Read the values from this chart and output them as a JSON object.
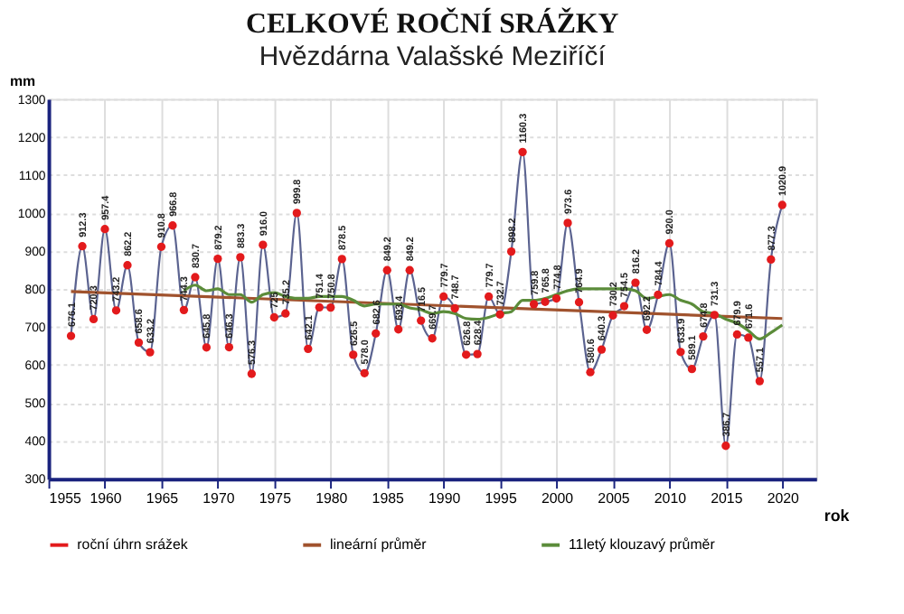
{
  "chart_data": {
    "type": "line",
    "title": "CELKOVÉ ROČNÍ SRÁŽKY",
    "subtitle": "Hvězdárna Valašské Meziříčí",
    "xlabel": "rok",
    "ylabel": "mm",
    "xlim": [
      1955,
      2023
    ],
    "xticks": [
      1955,
      1960,
      1965,
      1970,
      1975,
      1980,
      1985,
      1990,
      1995,
      2000,
      2005,
      2010,
      2015,
      2020
    ],
    "ylim": [
      300,
      1300
    ],
    "yticks": [
      300,
      400,
      500,
      600,
      700,
      800,
      900,
      1000,
      1100,
      1200,
      1300
    ],
    "line_style": "solid",
    "grid": true,
    "legend": "bottom",
    "series": [
      {
        "name": "roční úhrn srážek",
        "marker": "circle",
        "color": "#e31a1c",
        "x": [
          1957,
          1958,
          1959,
          1960,
          1961,
          1962,
          1963,
          1964,
          1965,
          1966,
          1967,
          1968,
          1969,
          1970,
          1971,
          1972,
          1973,
          1974,
          1975,
          1976,
          1977,
          1978,
          1979,
          1980,
          1981,
          1982,
          1983,
          1984,
          1985,
          1986,
          1987,
          1988,
          1989,
          1990,
          1991,
          1992,
          1993,
          1994,
          1995,
          1996,
          1997,
          1998,
          1999,
          2000,
          2001,
          2002,
          2003,
          2004,
          2005,
          2006,
          2007,
          2008,
          2009,
          2010,
          2011,
          2012,
          2013,
          2014,
          2015,
          2016,
          2017,
          2018,
          2019,
          2020
        ],
        "values": [
          676.1,
          912.3,
          720.3,
          957.4,
          743.2,
          862.2,
          658.6,
          633.2,
          910.8,
          966.8,
          744.3,
          830.7,
          645.8,
          879.2,
          646.3,
          883.3,
          576.3,
          916.0,
          725.0,
          735.2,
          999.8,
          642.1,
          751.4,
          750.8,
          878.5,
          626.5,
          578.0,
          682.6,
          849.2,
          693.4,
          849.2,
          716.5,
          669.7,
          779.7,
          748.7,
          626.8,
          628.4,
          779.7,
          732.7,
          898.2,
          1160.3,
          759.8,
          765.8,
          774.8,
          973.6,
          764.9,
          580.6,
          640.3,
          730.2,
          754.5,
          816.2,
          692.2,
          784.4,
          920.0,
          633.9,
          589.1,
          674.8,
          731.3,
          386.7,
          679.9,
          671.6,
          557.1,
          877.3,
          1020.9
        ],
        "value_labels": [
          "676.1",
          "912.3",
          "720.3",
          "957.4",
          "743.2",
          "862.2",
          "658.6",
          "633.2",
          "910.8",
          "966.8",
          "744.3",
          "830.7",
          "645.8",
          "879.2",
          "646.3",
          "883.3",
          "576.3",
          "916.0",
          "725",
          "735.2",
          "999.8",
          "642.1",
          "751.4",
          "750.8",
          "878.5",
          "626.5",
          "578.0",
          "682.6",
          "849.2",
          "693.4",
          "849.2",
          "716.5",
          "669.7",
          "779.7",
          "748.7",
          "626.8",
          "628.4",
          "779.7",
          "732.7",
          "898.2",
          "1160.3",
          "759.8",
          "765.8",
          "774.8",
          "973.6",
          "764.9",
          "580.6",
          "640.3",
          "730.2",
          "754.5",
          "816.2",
          "692.2",
          "784.4",
          "920.0",
          "633.9",
          "589.1",
          "674.8",
          "731.3",
          "386.7",
          "679.9",
          "671.6",
          "557.1",
          "877.3",
          "1020.9"
        ]
      },
      {
        "name": "lineární průměr",
        "marker": "none",
        "color": "#a0522d",
        "x": [
          1957,
          2020
        ],
        "values": [
          793,
          722
        ]
      },
      {
        "name": "11letý klouzavý průměr",
        "marker": "none",
        "color": "#5b8c3a",
        "x": [
          1967,
          1968,
          1969,
          1970,
          1971,
          1972,
          1973,
          1974,
          1975,
          1976,
          1977,
          1978,
          1979,
          1980,
          1981,
          1982,
          1983,
          1984,
          1985,
          1986,
          1987,
          1988,
          1989,
          1990,
          1991,
          1992,
          1993,
          1994,
          1995,
          1996,
          1997,
          1998,
          1999,
          2000,
          2001,
          2002,
          2003,
          2004,
          2005,
          2006,
          2007,
          2008,
          2009,
          2010,
          2011,
          2012,
          2013,
          2014,
          2015,
          2016,
          2017,
          2018,
          2019,
          2020
        ],
        "values": [
          795,
          810,
          795,
          800,
          785,
          785,
          765,
          785,
          790,
          780,
          775,
          775,
          780,
          780,
          780,
          770,
          755,
          760,
          760,
          760,
          750,
          745,
          735,
          740,
          735,
          722,
          720,
          725,
          735,
          740,
          770,
          770,
          775,
          785,
          795,
          800,
          800,
          800,
          800,
          800,
          795,
          775,
          780,
          785,
          770,
          760,
          740,
          735,
          720,
          710,
          690,
          668,
          685,
          705
        ]
      }
    ]
  }
}
